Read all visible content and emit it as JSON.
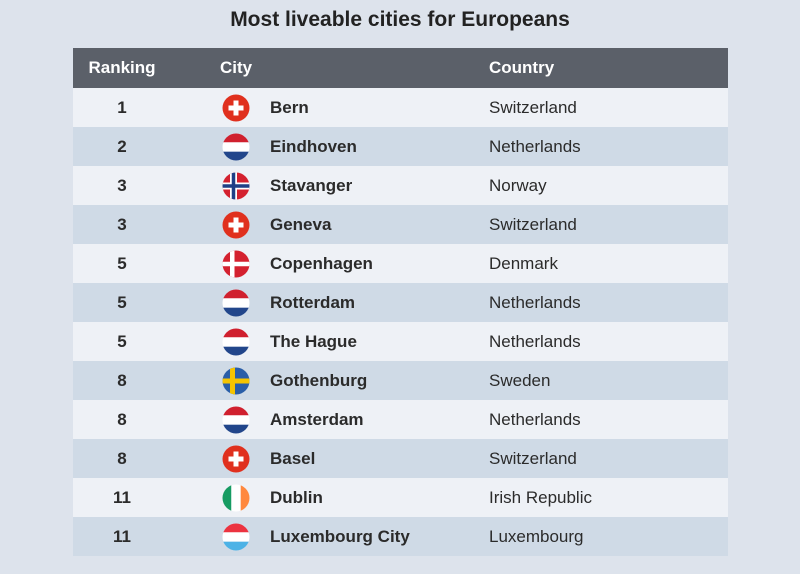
{
  "title": "Most liveable cities for Europeans",
  "table": {
    "header": [
      "Ranking",
      "City",
      "Country"
    ],
    "rows": [
      [
        1,
        "Bern",
        "Switzerland"
      ],
      [
        2,
        "Eindhoven",
        "Netherlands"
      ],
      [
        3,
        "Stavanger",
        "Norway"
      ],
      [
        3,
        "Geneva",
        "Switzerland"
      ],
      [
        5,
        "Copenhagen",
        "Denmark"
      ],
      [
        5,
        "Rotterdam",
        "Netherlands"
      ],
      [
        5,
        "The Hague",
        "Netherlands"
      ],
      [
        8,
        "Gothenburg",
        "Sweden"
      ],
      [
        8,
        "Amsterdam",
        "Netherlands"
      ],
      [
        8,
        "Basel",
        "Switzerland"
      ],
      [
        11,
        "Dublin",
        "Irish Republic"
      ],
      [
        11,
        "Luxembourg City",
        "Luxembourg"
      ]
    ]
  }
}
